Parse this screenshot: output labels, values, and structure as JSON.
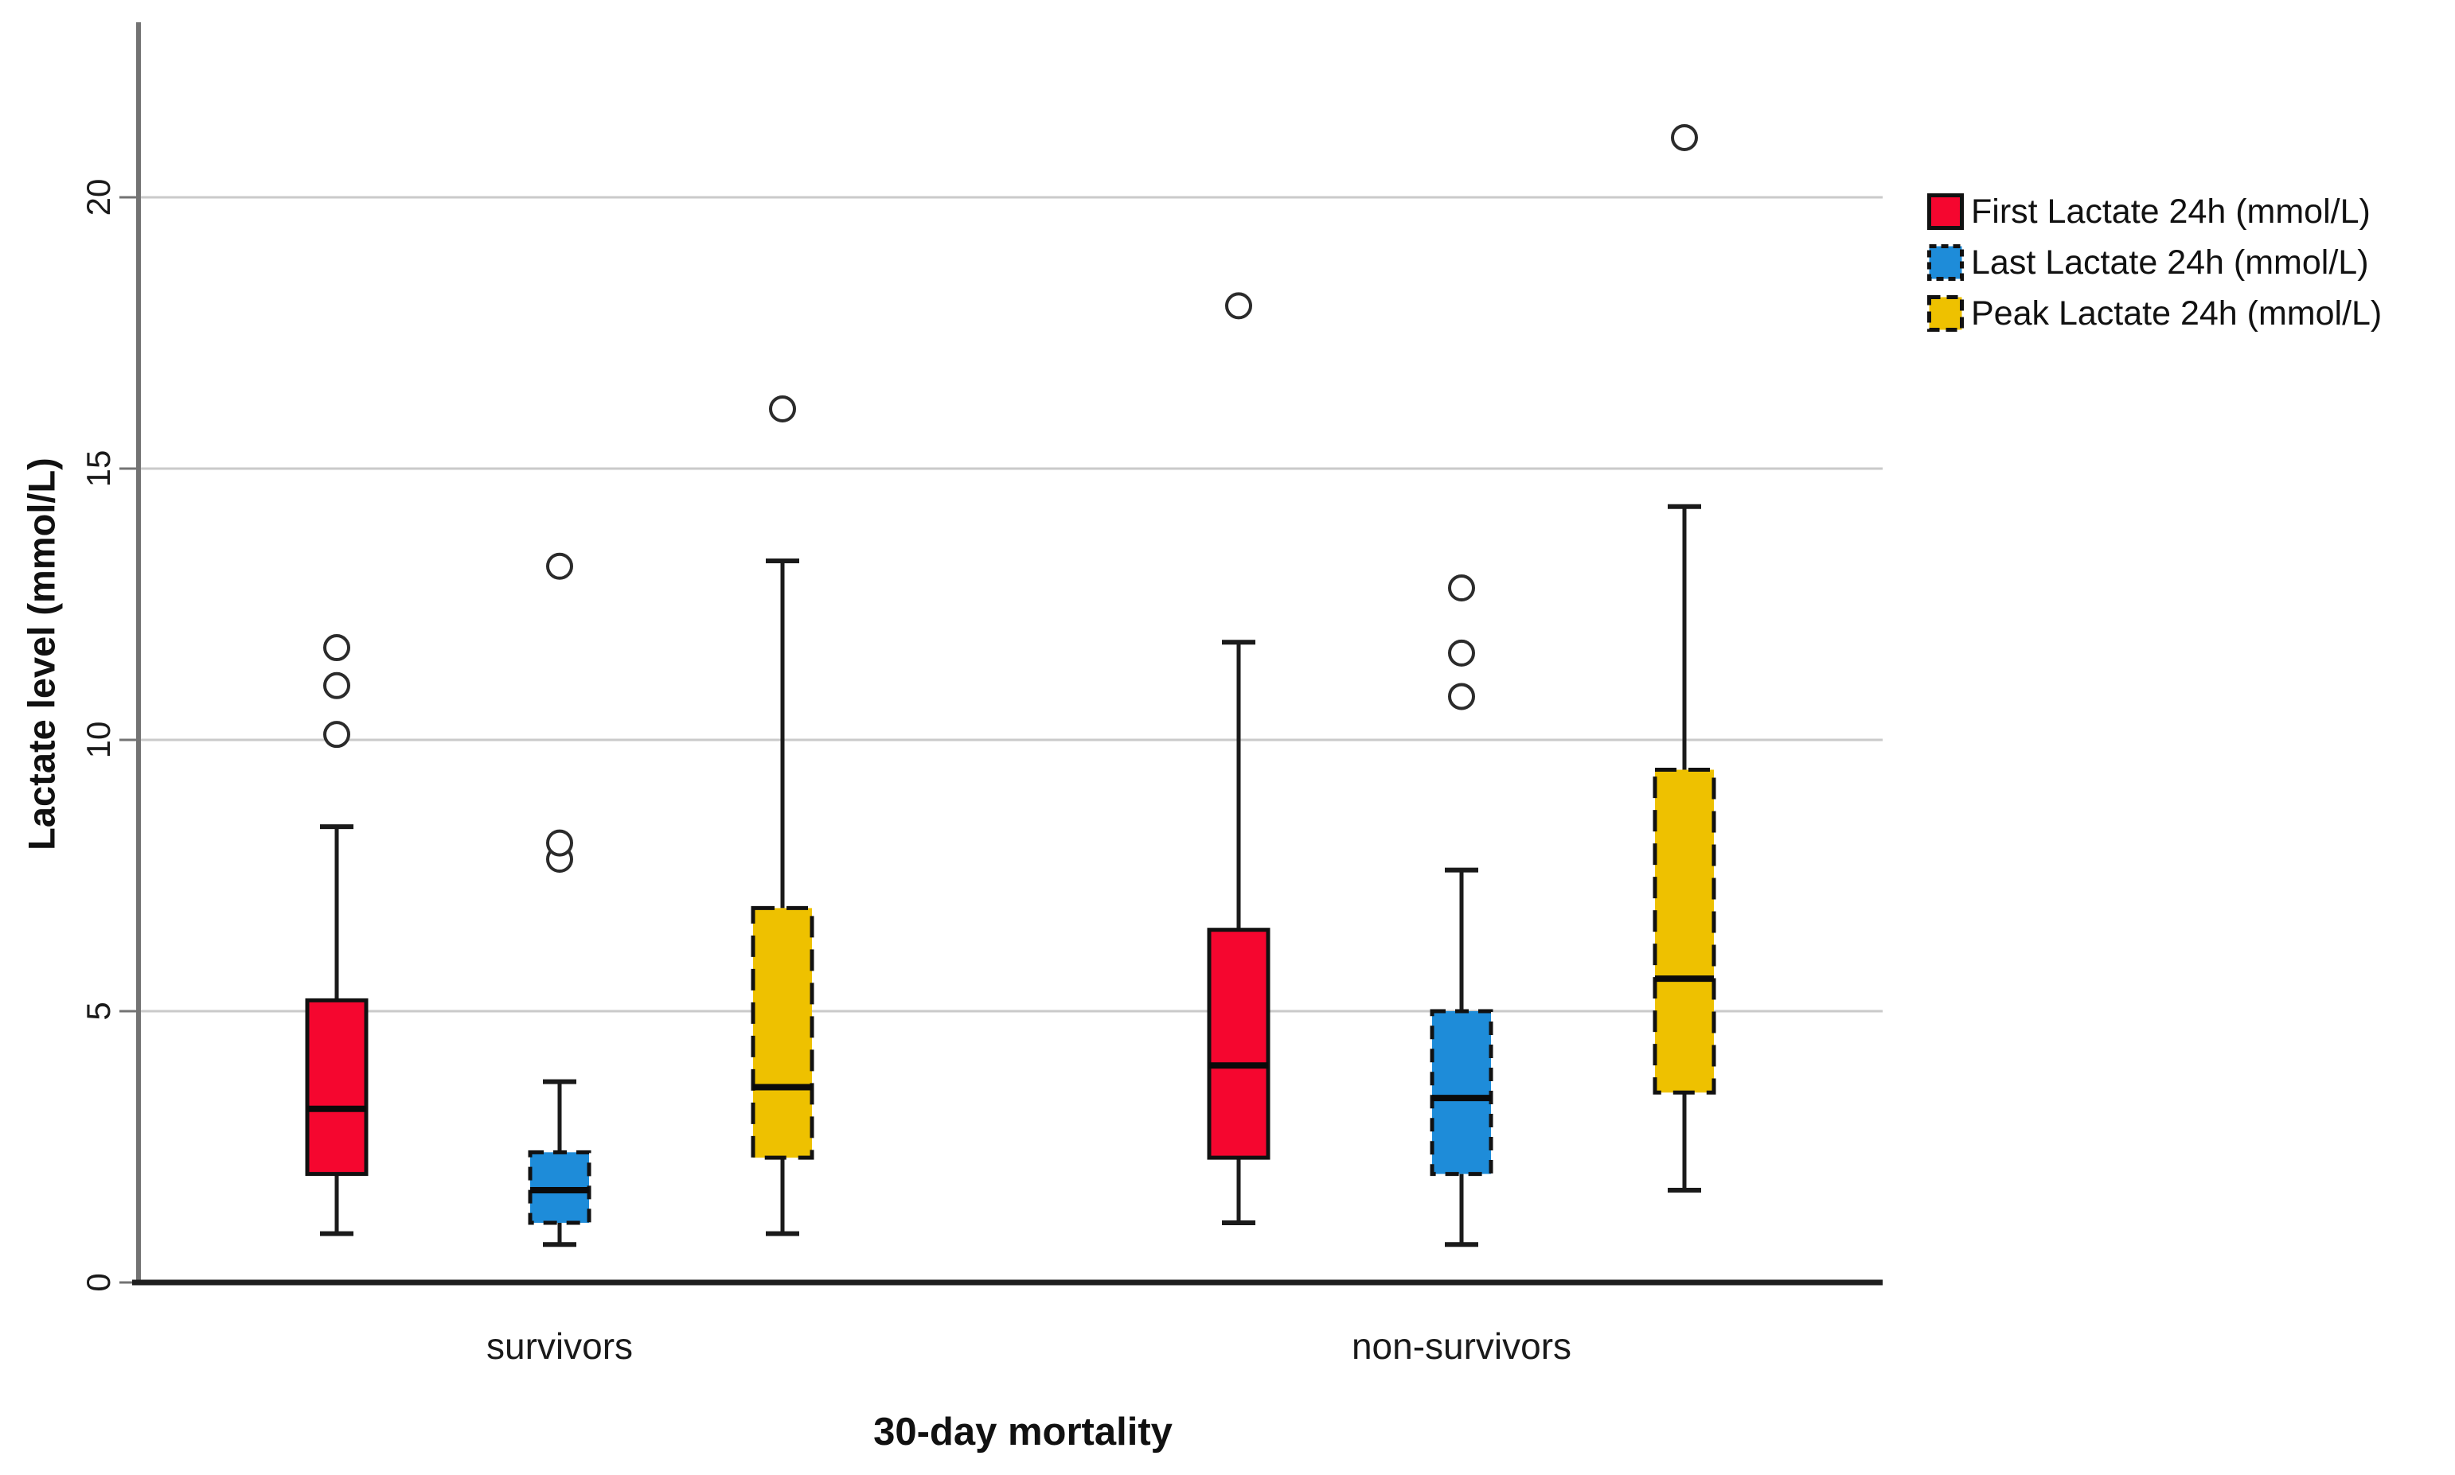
{
  "chart_data": {
    "type": "boxplot",
    "title": "",
    "xlabel": "30-day mortality",
    "ylabel": "Lactate level (mmol/L)",
    "ylim": [
      0,
      23.2
    ],
    "yticks": [
      0,
      5,
      10,
      15,
      20
    ],
    "grid": "horizontal-light-gray",
    "legend_position": "top-right",
    "categories": [
      "survivors",
      "non-survivors"
    ],
    "series": [
      {
        "name": "First Lactate 24h (mmol/L)",
        "color": "#F5062F",
        "border_style": "solid",
        "boxes": [
          {
            "category": "survivors",
            "whisker_low": 0.9,
            "q1": 2.0,
            "median": 3.2,
            "q3": 5.2,
            "whisker_high": 8.4,
            "outliers": [
              10.1,
              11.0,
              11.7
            ]
          },
          {
            "category": "non-survivors",
            "whisker_low": 1.1,
            "q1": 2.3,
            "median": 4.0,
            "q3": 6.5,
            "whisker_high": 11.8,
            "outliers": [
              18.0
            ]
          }
        ]
      },
      {
        "name": "Last Lactate 24h (mmol/L)",
        "color": "#1E8CD9",
        "border_style": "dashed",
        "boxes": [
          {
            "category": "survivors",
            "whisker_low": 0.7,
            "q1": 1.1,
            "median": 1.7,
            "q3": 2.4,
            "whisker_high": 3.7,
            "outliers": [
              7.8,
              8.1,
              13.2
            ]
          },
          {
            "category": "non-survivors",
            "whisker_low": 0.7,
            "q1": 2.0,
            "median": 3.4,
            "q3": 5.0,
            "whisker_high": 7.6,
            "outliers": [
              10.8,
              11.6,
              12.8
            ]
          }
        ]
      },
      {
        "name": "Peak Lactate 24h (mmol/L)",
        "color": "#EEC100",
        "border_style": "long-dash",
        "boxes": [
          {
            "category": "survivors",
            "whisker_low": 0.9,
            "q1": 2.3,
            "median": 3.6,
            "q3": 6.9,
            "whisker_high": 13.3,
            "outliers": [
              16.1
            ]
          },
          {
            "category": "non-survivors",
            "whisker_low": 1.7,
            "q1": 3.5,
            "median": 5.6,
            "q3": 9.45,
            "whisker_high": 14.3,
            "outliers": [
              21.1
            ]
          }
        ]
      }
    ],
    "colors": {
      "axis_y": "#737373",
      "axis_x": "#1f1f1f",
      "gridline": "#CACACA",
      "box_outline": "#111111",
      "outlier_stroke": "#2b2b2b"
    }
  }
}
